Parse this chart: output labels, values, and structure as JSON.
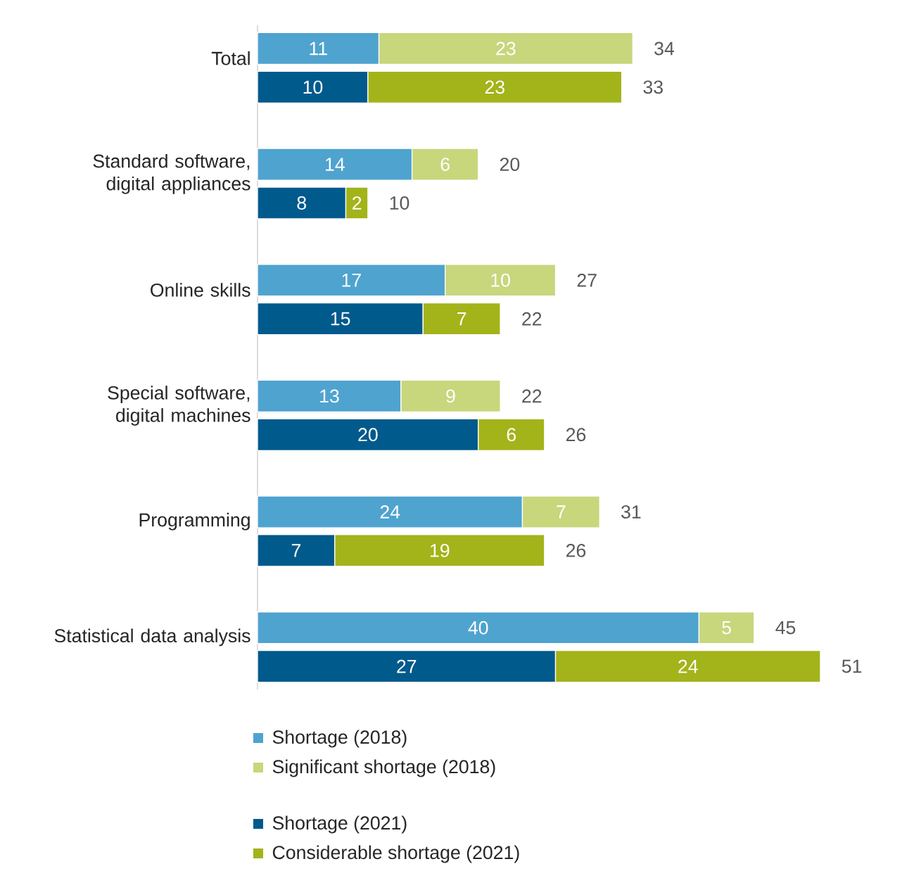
{
  "chart_data": {
    "type": "bar",
    "orientation": "horizontal",
    "stacked": true,
    "data_labels": true,
    "legend": "bottom",
    "categories": [
      "Total",
      null,
      "Standard software, digital appliances",
      null,
      "Online skills",
      null,
      "Special software, digital machines",
      null,
      "Programming",
      null,
      "Statistical data analysis",
      null
    ],
    "series": [
      {
        "name": "Shortage (2018)",
        "color": "#4fa3cf",
        "values": [
          11,
          null,
          14,
          null,
          17,
          null,
          13,
          null,
          24,
          null,
          40,
          null
        ]
      },
      {
        "name": "Significant shortage (2018)",
        "color": "#c8d67c",
        "values": [
          23,
          null,
          6,
          null,
          10,
          null,
          9,
          null,
          7,
          null,
          5,
          null
        ]
      },
      {
        "name": "Shortage (2021)",
        "color": "#005a8c",
        "values": [
          null,
          10,
          null,
          8,
          null,
          15,
          null,
          20,
          null,
          7,
          null,
          27
        ]
      },
      {
        "name": "Considerable shortage (2021)",
        "color": "#a3b31a",
        "values": [
          null,
          23,
          null,
          2,
          null,
          7,
          null,
          6,
          null,
          19,
          null,
          24
        ]
      }
    ],
    "totals": [
      "34",
      "33",
      "20",
      "10",
      "27",
      "22",
      "22",
      "26",
      "31",
      "26",
      "45",
      "51"
    ]
  }
}
